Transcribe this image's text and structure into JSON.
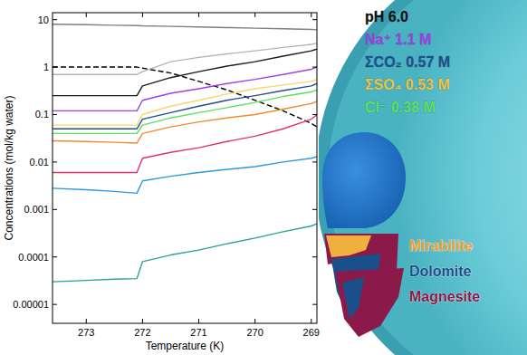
{
  "chart_data": {
    "type": "line",
    "xlabel": "Temperature (K)",
    "ylabel": "Concentrations (mol/kg water)",
    "log": "y",
    "grid": false,
    "x": [
      273.6,
      273,
      272.5,
      272.1,
      272,
      271.5,
      271,
      270.5,
      270,
      269.5,
      269,
      268.9
    ],
    "xlim": [
      273.6,
      268.9
    ],
    "xticks": [
      273,
      272,
      271,
      270,
      269
    ],
    "ylim": [
      4e-06,
      14
    ],
    "yticks": [
      1e-05,
      0.0001,
      0.001,
      0.01,
      0.1,
      1,
      10
    ],
    "series": [
      {
        "color": "#808080",
        "line_style": "solid",
        "values": [
          8,
          7.8,
          7.6,
          7.5,
          7.4,
          7.2,
          7,
          6.8,
          6.6,
          6.4,
          6.2,
          6.1
        ]
      },
      {
        "color": "#000000",
        "line_style": "dashed",
        "values": [
          1,
          1,
          1,
          1,
          0.95,
          0.75,
          0.5,
          0.33,
          0.2,
          0.12,
          0.065,
          0.055
        ]
      },
      {
        "color": "#b4b4b4",
        "line_style": "solid",
        "values": [
          0.7,
          0.7,
          0.7,
          0.7,
          0.8,
          1.3,
          1.6,
          1.9,
          2.2,
          2.6,
          3,
          3.2
        ]
      },
      {
        "color": "#1a1a1a",
        "line_style": "solid",
        "values": [
          0.25,
          0.25,
          0.25,
          0.25,
          0.4,
          0.6,
          0.8,
          1.05,
          1.3,
          1.7,
          2.2,
          2.4
        ]
      },
      {
        "color": "#a040e0",
        "line_style": "solid",
        "values": [
          0.12,
          0.12,
          0.12,
          0.12,
          0.2,
          0.28,
          0.35,
          0.45,
          0.55,
          0.7,
          0.9,
          1.0
        ]
      },
      {
        "color": "#f5d76e",
        "line_style": "solid",
        "values": [
          0.06,
          0.06,
          0.06,
          0.06,
          0.1,
          0.15,
          0.2,
          0.27,
          0.35,
          0.42,
          0.5,
          0.55
        ]
      },
      {
        "color": "#1f4e8c",
        "line_style": "solid",
        "values": [
          0.05,
          0.05,
          0.05,
          0.05,
          0.08,
          0.11,
          0.15,
          0.2,
          0.25,
          0.32,
          0.4,
          0.45
        ]
      },
      {
        "color": "#5de05d",
        "line_style": "solid",
        "values": [
          0.04,
          0.04,
          0.04,
          0.04,
          0.06,
          0.085,
          0.11,
          0.14,
          0.18,
          0.24,
          0.3,
          0.33
        ]
      },
      {
        "color": "#f08c28",
        "line_style": "solid",
        "values": [
          0.028,
          0.027,
          0.026,
          0.025,
          0.04,
          0.055,
          0.07,
          0.085,
          0.1,
          0.13,
          0.17,
          0.19
        ]
      },
      {
        "color": "#e0307a",
        "line_style": "solid",
        "values": [
          0.006,
          0.006,
          0.006,
          0.006,
          0.012,
          0.016,
          0.02,
          0.027,
          0.035,
          0.05,
          0.08,
          0.1
        ]
      },
      {
        "color": "#2a9ae0",
        "line_style": "solid",
        "values": [
          0.0028,
          0.0026,
          0.0024,
          0.0022,
          0.004,
          0.005,
          0.006,
          0.007,
          0.008,
          0.01,
          0.012,
          0.013
        ]
      },
      {
        "color": "#2aa198",
        "line_style": "solid",
        "values": [
          3e-05,
          3.2e-05,
          3.4e-05,
          3.5e-05,
          8e-05,
          0.00011,
          0.00014,
          0.00019,
          0.00025,
          0.00034,
          0.00045,
          0.0005
        ]
      }
    ]
  },
  "illustration": {
    "composition": [
      {
        "text": "pH 6.0",
        "color": "#111111"
      },
      {
        "text": "Na⁺ 1.1 M",
        "color": "#a040e0"
      },
      {
        "text": "ΣCO₂ 0.57 M",
        "color": "#1f4e8c"
      },
      {
        "text": "ΣSO₄ 0.53 M",
        "color": "#f0c040"
      },
      {
        "text": "Cl⁻ 0.38 M",
        "color": "#5de05d"
      }
    ],
    "minerals": [
      {
        "text": "Mirabilite",
        "color": "#f0a030"
      },
      {
        "text": "Dolomite",
        "color": "#1b4f8a"
      },
      {
        "text": "Magnesite",
        "color": "#8b1a4a"
      }
    ]
  }
}
